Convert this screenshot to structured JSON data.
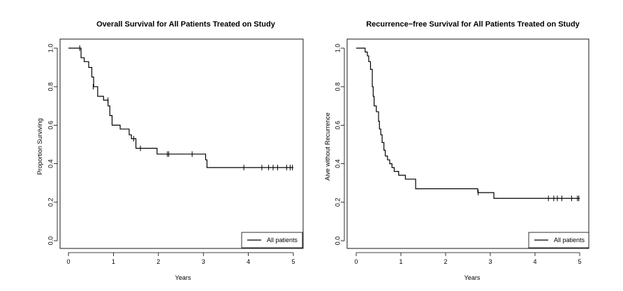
{
  "chart_data": [
    {
      "type": "line",
      "subtype": "kaplan-meier step",
      "title": "Overall Survival for All Patients Treated on Study",
      "xlabel": "Years",
      "ylabel": "Proportion Surviving",
      "xlim": [
        0,
        5
      ],
      "ylim": [
        0,
        1
      ],
      "xticks": [
        0,
        1,
        2,
        3,
        4,
        5
      ],
      "yticks": [
        0.0,
        0.2,
        0.4,
        0.6,
        0.8,
        1.0
      ],
      "ytick_labels": [
        "0.0",
        "0.2",
        "0.4",
        "0.6",
        "0.8",
        "1.0"
      ],
      "xtick_labels": [
        "0",
        "1",
        "2",
        "3",
        "4",
        "5"
      ],
      "legend": {
        "position": "bottom-right",
        "label": "All patients"
      },
      "series": [
        {
          "name": "All patients",
          "steps": [
            [
              0,
              1.0
            ],
            [
              0.28,
              0.95
            ],
            [
              0.35,
              0.93
            ],
            [
              0.45,
              0.9
            ],
            [
              0.52,
              0.85
            ],
            [
              0.56,
              0.8
            ],
            [
              0.65,
              0.75
            ],
            [
              0.78,
              0.73
            ],
            [
              0.88,
              0.7
            ],
            [
              0.92,
              0.65
            ],
            [
              0.97,
              0.6
            ],
            [
              1.15,
              0.58
            ],
            [
              1.35,
              0.55
            ],
            [
              1.4,
              0.53
            ],
            [
              1.5,
              0.48
            ],
            [
              1.97,
              0.45
            ],
            [
              3.05,
              0.42
            ],
            [
              3.08,
              0.38
            ],
            [
              5.0,
              0.38
            ]
          ],
          "censored": [
            [
              0.25,
              1.0
            ],
            [
              0.55,
              0.8
            ],
            [
              0.88,
              0.73
            ],
            [
              1.45,
              0.53
            ],
            [
              1.6,
              0.48
            ],
            [
              2.2,
              0.45
            ],
            [
              2.23,
              0.45
            ],
            [
              2.75,
              0.45
            ],
            [
              3.9,
              0.38
            ],
            [
              4.3,
              0.38
            ],
            [
              4.45,
              0.38
            ],
            [
              4.55,
              0.38
            ],
            [
              4.65,
              0.38
            ],
            [
              4.85,
              0.38
            ],
            [
              4.93,
              0.38
            ],
            [
              4.98,
              0.38
            ]
          ]
        }
      ]
    },
    {
      "type": "line",
      "subtype": "kaplan-meier step",
      "title": "Recurrence−free Survival for All Patients Treated on Study",
      "xlabel": "Years",
      "ylabel": "Aive without Recurrence",
      "xlim": [
        0,
        5
      ],
      "ylim": [
        0,
        1
      ],
      "xticks": [
        0,
        1,
        2,
        3,
        4,
        5
      ],
      "yticks": [
        0.0,
        0.2,
        0.4,
        0.6,
        0.8,
        1.0
      ],
      "ytick_labels": [
        "0.0",
        "0.2",
        "0.4",
        "0.6",
        "0.8",
        "1.0"
      ],
      "xtick_labels": [
        "0",
        "1",
        "2",
        "3",
        "4",
        "5"
      ],
      "legend": {
        "position": "bottom-right",
        "label": "All patients"
      },
      "series": [
        {
          "name": "All patients",
          "steps": [
            [
              0,
              1.0
            ],
            [
              0.2,
              0.98
            ],
            [
              0.25,
              0.96
            ],
            [
              0.28,
              0.93
            ],
            [
              0.32,
              0.89
            ],
            [
              0.36,
              0.8
            ],
            [
              0.38,
              0.75
            ],
            [
              0.4,
              0.7
            ],
            [
              0.45,
              0.67
            ],
            [
              0.5,
              0.62
            ],
            [
              0.52,
              0.58
            ],
            [
              0.55,
              0.55
            ],
            [
              0.58,
              0.51
            ],
            [
              0.62,
              0.47
            ],
            [
              0.65,
              0.44
            ],
            [
              0.7,
              0.42
            ],
            [
              0.75,
              0.4
            ],
            [
              0.8,
              0.38
            ],
            [
              0.85,
              0.36
            ],
            [
              0.95,
              0.34
            ],
            [
              1.1,
              0.32
            ],
            [
              1.33,
              0.27
            ],
            [
              2.72,
              0.25
            ],
            [
              3.08,
              0.22
            ],
            [
              5.0,
              0.22
            ]
          ],
          "censored": [
            [
              2.73,
              0.25
            ],
            [
              4.3,
              0.22
            ],
            [
              4.42,
              0.22
            ],
            [
              4.5,
              0.22
            ],
            [
              4.6,
              0.22
            ],
            [
              4.82,
              0.22
            ],
            [
              4.95,
              0.22
            ],
            [
              4.98,
              0.22
            ]
          ]
        }
      ]
    }
  ]
}
